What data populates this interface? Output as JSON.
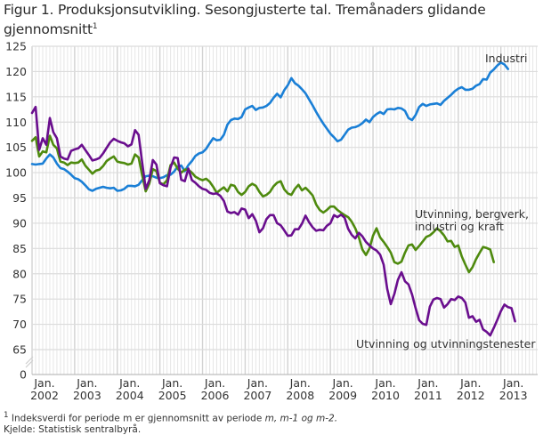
{
  "title": "Figur 1. Produksjonsutvikling. Sesongjusterte tal. Tremånaders glidande gjennomsnitt",
  "title_superscript": "1",
  "footnote_marker": "1",
  "footnote_text": " Indeksverdi for periode m er gjennomsnitt av periode ",
  "footnote_italic": "m, m-1 og m-2.",
  "source": "Kjelde: Statistisk sentralbyrå.",
  "chart_data": {
    "type": "line",
    "title": "Figur 1. Produksjonsutvikling. Sesongjusterte tal. Tremånaders glidande gjennomsnitt",
    "xlabel": "",
    "ylabel": "",
    "x_start": "2002-01",
    "x_frequency": "monthly",
    "x_ticks": [
      {
        "label": "Jan.",
        "year": "2002"
      },
      {
        "label": "Jan.",
        "year": "2003"
      },
      {
        "label": "Jan.",
        "year": "2004"
      },
      {
        "label": "Jan.",
        "year": "2005"
      },
      {
        "label": "Jan.",
        "year": "2006"
      },
      {
        "label": "Jan.",
        "year": "2007"
      },
      {
        "label": "Jan.",
        "year": "2008"
      },
      {
        "label": "Jan.",
        "year": "2009"
      },
      {
        "label": "Jan.",
        "year": "2010"
      },
      {
        "label": "Jan.",
        "year": "2011"
      },
      {
        "label": "Jan.",
        "year": "2012"
      },
      {
        "label": "Jan.",
        "year": "2013"
      }
    ],
    "y_ticks": [
      "0",
      "65",
      "70",
      "75",
      "80",
      "85",
      "90",
      "95",
      "100",
      "105",
      "110",
      "115",
      "120",
      "125"
    ],
    "ylim": [
      65,
      125
    ],
    "y_axis_break": true,
    "grid": true,
    "series": [
      {
        "name": "Industri",
        "color": "#1a7fd6",
        "values": [
          101.7,
          101.6,
          101.7,
          101.8,
          102.8,
          103.6,
          103.0,
          101.8,
          100.9,
          100.7,
          100.2,
          99.6,
          98.9,
          98.7,
          98.2,
          97.5,
          96.7,
          96.4,
          96.8,
          97.0,
          97.2,
          97.0,
          96.9,
          97.0,
          96.4,
          96.5,
          96.8,
          97.4,
          97.4,
          97.3,
          97.6,
          98.5,
          99.3,
          99.4,
          99.3,
          99.0,
          98.9,
          99.1,
          99.5,
          99.6,
          100.2,
          101.2,
          101.4,
          100.3,
          101.5,
          102.3,
          103.3,
          103.8,
          104.0,
          104.7,
          105.8,
          106.8,
          106.4,
          106.5,
          107.5,
          109.5,
          110.4,
          110.7,
          110.6,
          111.0,
          112.5,
          112.9,
          113.2,
          112.4,
          112.8,
          112.9,
          113.2,
          113.8,
          114.8,
          115.6,
          114.9,
          116.3,
          117.3,
          118.7,
          117.7,
          117.2,
          116.5,
          115.7,
          114.5,
          113.3,
          112.0,
          110.8,
          109.7,
          108.7,
          107.7,
          107.0,
          106.2,
          106.5,
          107.5,
          108.5,
          108.9,
          109.0,
          109.3,
          109.8,
          110.5,
          110.0,
          111.0,
          111.6,
          112.0,
          111.6,
          112.5,
          112.6,
          112.5,
          112.8,
          112.7,
          112.2,
          110.8,
          110.4,
          111.4,
          113.0,
          113.6,
          113.2,
          113.5,
          113.6,
          113.7,
          113.4,
          114.2,
          114.8,
          115.4,
          116.1,
          116.6,
          116.9,
          116.4,
          116.4,
          116.6,
          117.2,
          117.5,
          118.5,
          118.4,
          119.8,
          120.4,
          121.2,
          121.8,
          121.4,
          120.5
        ]
      },
      {
        "name": "Utvinning, bergverk, industri og kraft",
        "color": "#4e8a0e",
        "values": [
          106.3,
          107.0,
          103.2,
          104.2,
          104.0,
          107.3,
          105.5,
          104.8,
          102.2,
          102.0,
          101.5,
          102.0,
          101.9,
          102.0,
          102.6,
          101.4,
          100.6,
          99.8,
          100.4,
          100.6,
          101.3,
          102.3,
          102.8,
          103.2,
          102.2,
          102.0,
          101.9,
          101.6,
          101.8,
          103.6,
          103.0,
          99.5,
          96.3,
          97.8,
          100.7,
          100.3,
          98.0,
          97.7,
          98.5,
          101.5,
          102.0,
          100.8,
          100.0,
          100.6,
          100.6,
          100.0,
          99.2,
          98.8,
          98.5,
          98.8,
          98.2,
          97.2,
          96.0,
          96.6,
          97.1,
          96.3,
          97.6,
          97.4,
          96.2,
          95.6,
          96.2,
          97.3,
          97.8,
          97.4,
          96.2,
          95.3,
          95.6,
          96.2,
          97.3,
          98.0,
          98.3,
          96.7,
          95.9,
          95.6,
          96.8,
          97.6,
          96.5,
          97.0,
          96.3,
          95.5,
          93.7,
          92.6,
          92.1,
          92.6,
          93.3,
          93.3,
          92.6,
          92.1,
          91.6,
          91.2,
          90.3,
          89.0,
          87.2,
          84.8,
          83.7,
          85.0,
          87.5,
          89.0,
          87.2,
          86.3,
          85.3,
          84.2,
          82.3,
          82.0,
          82.4,
          84.2,
          85.6,
          85.8,
          84.7,
          85.5,
          86.4,
          87.3,
          87.6,
          88.2,
          89.0,
          88.4,
          87.6,
          86.4,
          86.5,
          85.3,
          85.6,
          83.4,
          81.8,
          80.3,
          81.3,
          82.9,
          84.1,
          85.3,
          85.1,
          84.8,
          82.3
        ]
      },
      {
        "name": "Utvinning og utvinningstenester",
        "color": "#6a0e8e",
        "values": [
          111.8,
          113.0,
          104.5,
          106.8,
          105.5,
          110.8,
          108.0,
          106.8,
          103.2,
          102.8,
          102.6,
          104.3,
          104.6,
          104.8,
          105.5,
          104.5,
          103.5,
          102.4,
          102.6,
          102.9,
          103.8,
          104.9,
          106.0,
          106.7,
          106.3,
          106.0,
          105.8,
          105.2,
          105.6,
          108.4,
          107.5,
          102.0,
          96.8,
          98.5,
          102.5,
          101.6,
          97.9,
          97.5,
          97.3,
          101.0,
          103.0,
          102.9,
          98.6,
          98.3,
          100.8,
          98.5,
          98.0,
          97.3,
          96.8,
          96.6,
          96.0,
          95.8,
          95.9,
          95.4,
          94.4,
          92.3,
          92.0,
          92.2,
          91.7,
          92.9,
          92.7,
          91.0,
          91.8,
          90.5,
          88.2,
          89.0,
          90.8,
          91.6,
          91.6,
          90.0,
          89.6,
          88.6,
          87.5,
          87.6,
          88.8,
          88.8,
          89.9,
          91.5,
          90.2,
          89.2,
          88.5,
          88.7,
          88.6,
          89.5,
          90.0,
          91.6,
          91.2,
          91.7,
          91.1,
          88.9,
          87.7,
          87.0,
          88.1,
          87.4,
          86.3,
          85.6,
          85.0,
          84.6,
          83.8,
          81.8,
          77.0,
          74.0,
          76.0,
          78.8,
          80.3,
          78.5,
          77.9,
          75.9,
          73.2,
          70.8,
          70.1,
          69.9,
          73.5,
          74.9,
          75.2,
          75.0,
          73.3,
          74.0,
          75.0,
          74.8,
          75.5,
          75.2,
          74.3,
          71.3,
          71.6,
          70.5,
          70.9,
          69.0,
          68.5,
          67.8,
          69.3,
          70.9,
          72.6,
          73.9,
          73.4,
          73.2,
          70.6
        ]
      }
    ],
    "annotations": [
      {
        "text": "Industri",
        "series": "Industri"
      },
      {
        "text": "Utvinning, bergverk,",
        "series": "Utvinning, bergverk, industri og kraft"
      },
      {
        "text": "industri og kraft",
        "series": "Utvinning, bergverk, industri og kraft"
      },
      {
        "text": "Utvinning og utvinningstenester",
        "series": "Utvinning og utvinningstenester"
      }
    ],
    "legend": "inline-labels"
  }
}
